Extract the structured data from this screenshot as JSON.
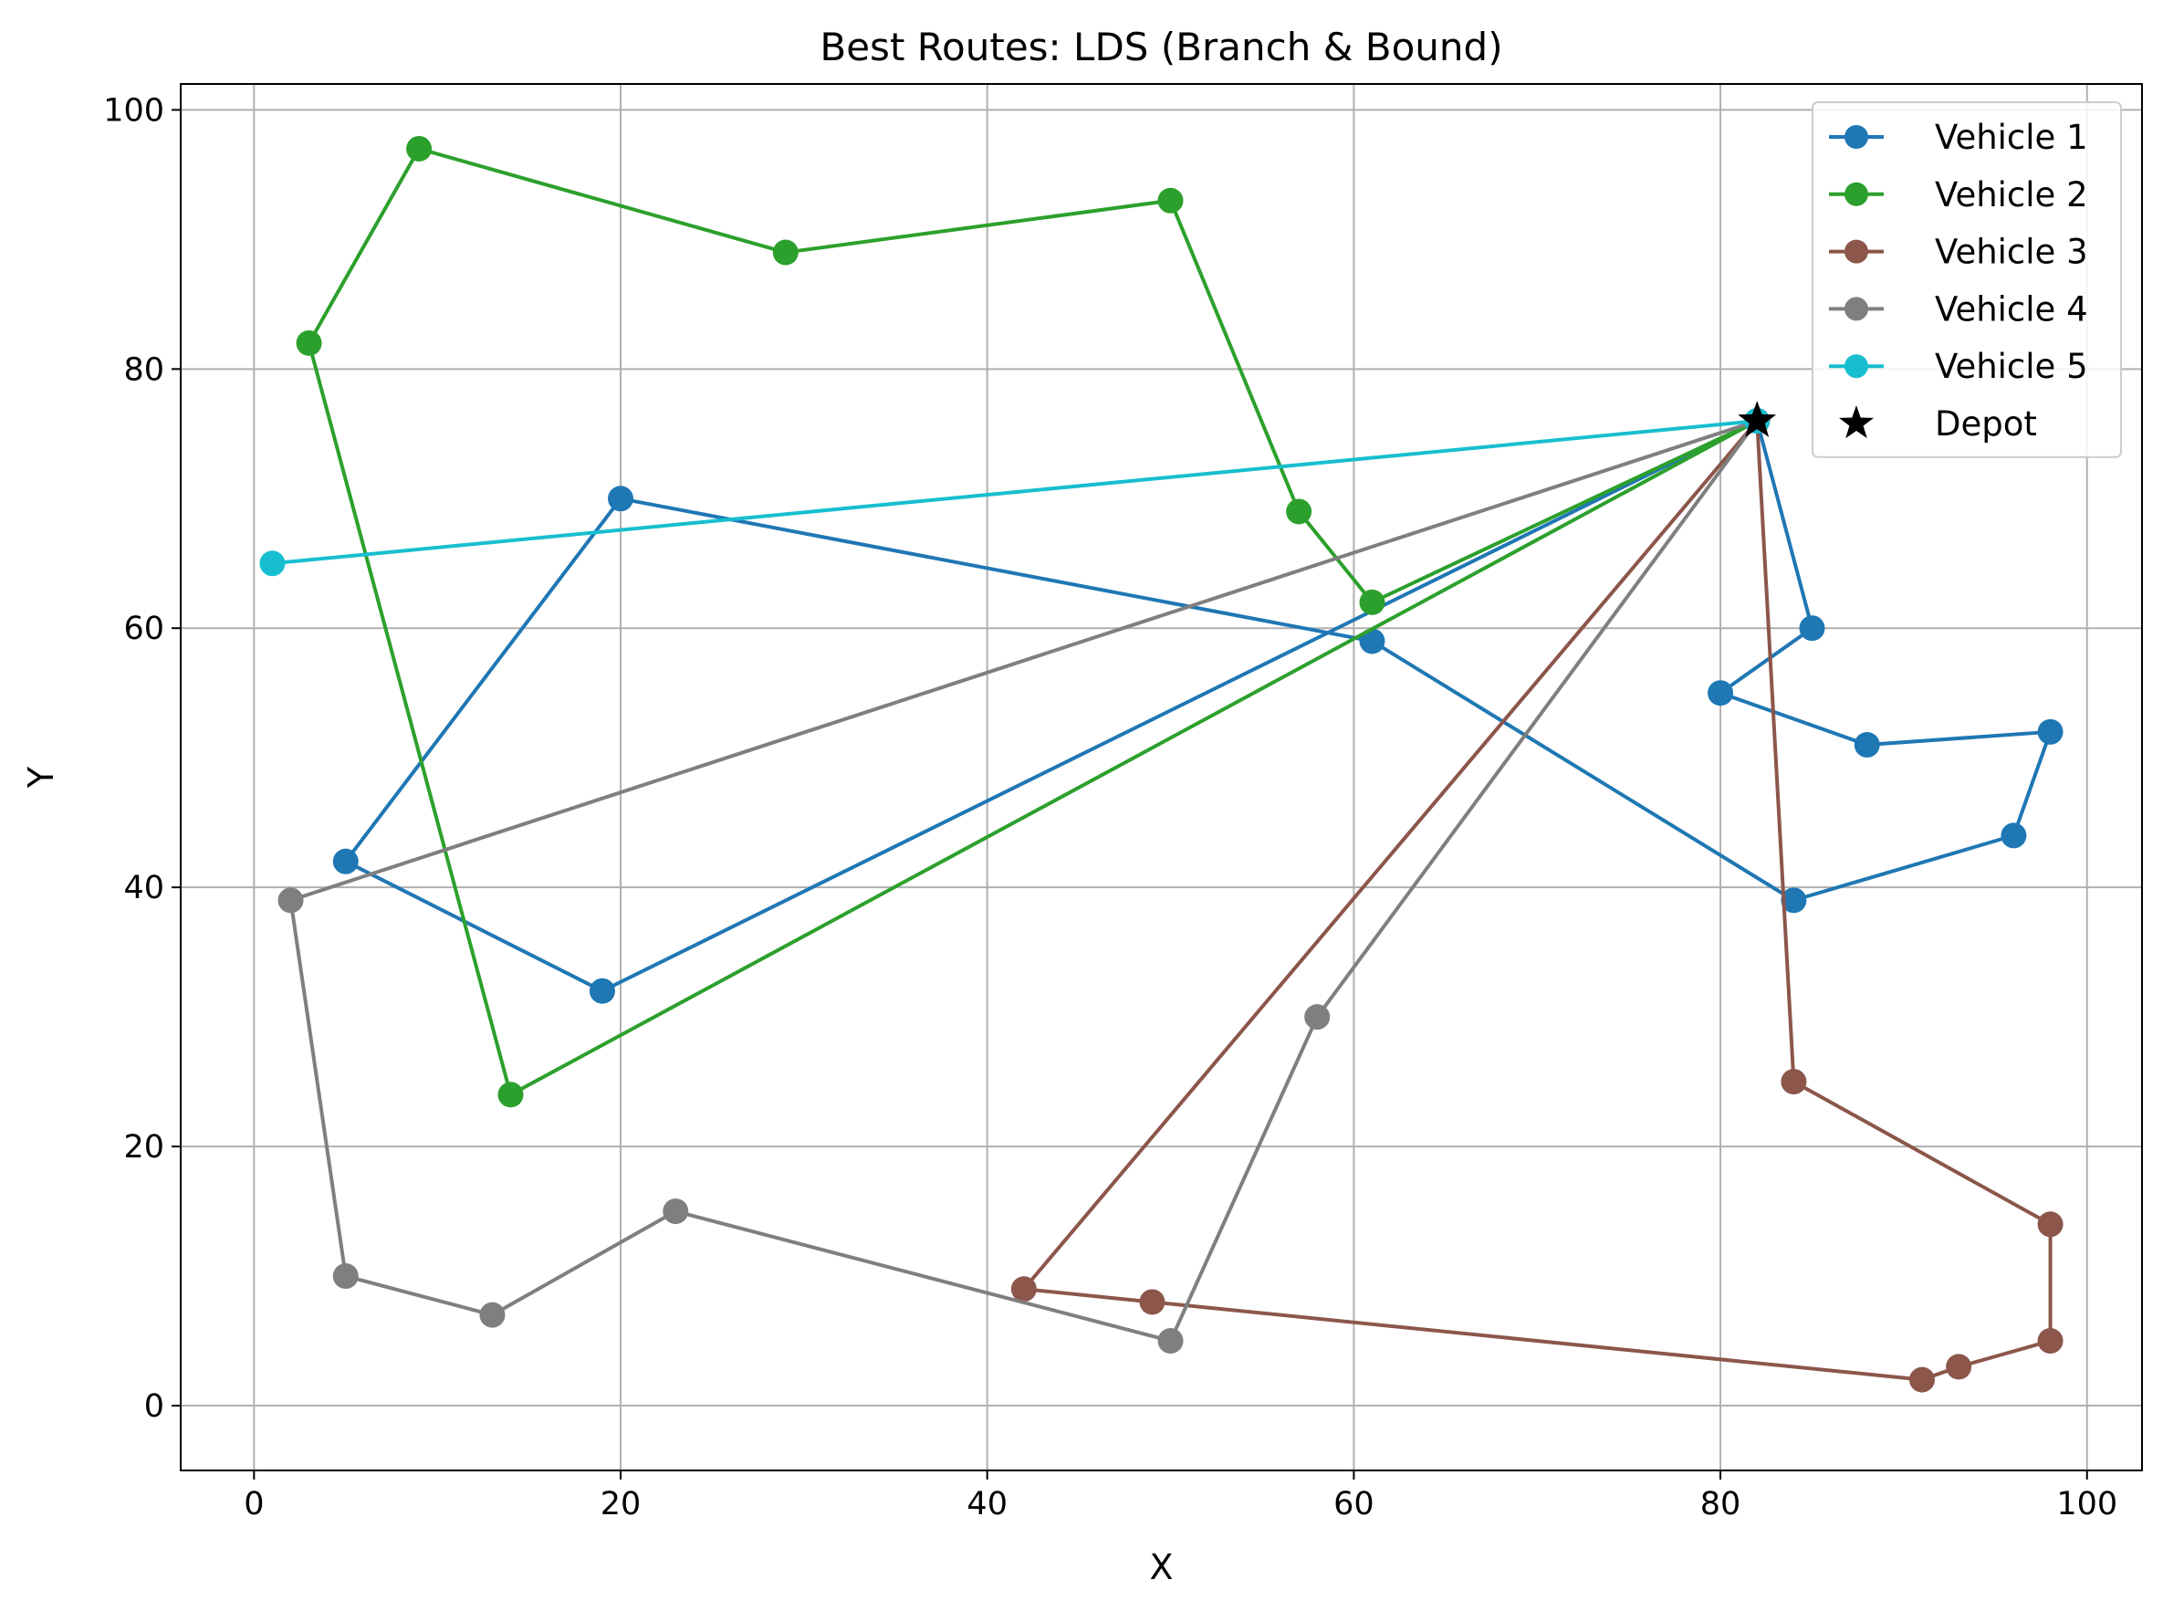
{
  "chart_data": {
    "type": "line",
    "title": "Best Routes: LDS (Branch & Bound)",
    "xlabel": "X",
    "ylabel": "Y",
    "xlim": [
      -4,
      103
    ],
    "ylim": [
      -5,
      102
    ],
    "xticks": [
      0,
      20,
      40,
      60,
      80,
      100
    ],
    "yticks": [
      0,
      20,
      40,
      60,
      80,
      100
    ],
    "grid": true,
    "legend_position": "top-right",
    "depot": {
      "name": "Depot",
      "x": 82,
      "y": 76,
      "marker": "star",
      "color": "#000000"
    },
    "series": [
      {
        "name": "Vehicle 1",
        "color": "#1f77b4",
        "points": [
          [
            82,
            76
          ],
          [
            85,
            60
          ],
          [
            80,
            55
          ],
          [
            88,
            51
          ],
          [
            98,
            52
          ],
          [
            96,
            44
          ],
          [
            84,
            39
          ],
          [
            61,
            59
          ],
          [
            20,
            70
          ],
          [
            5,
            42
          ],
          [
            19,
            32
          ],
          [
            82,
            76
          ]
        ]
      },
      {
        "name": "Vehicle 2",
        "color": "#2ca02c",
        "points": [
          [
            82,
            76
          ],
          [
            61,
            62
          ],
          [
            57,
            69
          ],
          [
            50,
            93
          ],
          [
            29,
            89
          ],
          [
            9,
            97
          ],
          [
            3,
            82
          ],
          [
            14,
            24
          ],
          [
            82,
            76
          ]
        ]
      },
      {
        "name": "Vehicle 3",
        "color": "#8c564b",
        "points": [
          [
            82,
            76
          ],
          [
            84,
            25
          ],
          [
            98,
            14
          ],
          [
            98,
            5
          ],
          [
            93,
            3
          ],
          [
            91,
            2
          ],
          [
            49,
            8
          ],
          [
            42,
            9
          ],
          [
            82,
            76
          ]
        ]
      },
      {
        "name": "Vehicle 4",
        "color": "#7f7f7f",
        "points": [
          [
            82,
            76
          ],
          [
            58,
            30
          ],
          [
            50,
            5
          ],
          [
            23,
            15
          ],
          [
            13,
            7
          ],
          [
            5,
            10
          ],
          [
            2,
            39
          ],
          [
            82,
            76
          ]
        ]
      },
      {
        "name": "Vehicle 5",
        "color": "#17becf",
        "points": [
          [
            82,
            76
          ],
          [
            1,
            65
          ],
          [
            82,
            76
          ]
        ]
      }
    ]
  }
}
